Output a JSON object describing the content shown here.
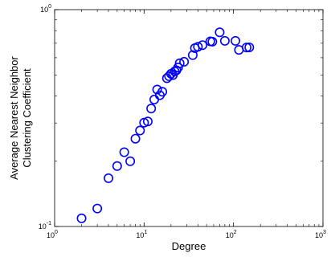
{
  "chart_data": {
    "type": "scatter",
    "title": "",
    "xlabel": "Degree",
    "ylabel_lines": [
      "Average Nearest Neighbor",
      "Clustering Coefficient"
    ],
    "xscale": "log",
    "yscale": "log",
    "xlim": [
      1,
      1000
    ],
    "ylim": [
      0.1,
      1
    ],
    "grid": false,
    "marker": "open-circle",
    "marker_color": "#0000ff",
    "x_ticks": [
      {
        "base": "10",
        "exp": "0",
        "value": 1
      },
      {
        "base": "10",
        "exp": "1",
        "value": 10
      },
      {
        "base": "10",
        "exp": "2",
        "value": 100
      },
      {
        "base": "10",
        "exp": "3",
        "value": 1000
      }
    ],
    "y_ticks": [
      {
        "base": "10",
        "exp": "-1",
        "value": 0.1
      },
      {
        "base": "10",
        "exp": "0",
        "value": 1
      }
    ],
    "points": [
      {
        "x": 2,
        "y": 0.109
      },
      {
        "x": 3,
        "y": 0.121
      },
      {
        "x": 4,
        "y": 0.167
      },
      {
        "x": 5,
        "y": 0.19
      },
      {
        "x": 6,
        "y": 0.22
      },
      {
        "x": 7,
        "y": 0.2
      },
      {
        "x": 8,
        "y": 0.254
      },
      {
        "x": 9,
        "y": 0.277
      },
      {
        "x": 10,
        "y": 0.301
      },
      {
        "x": 11,
        "y": 0.305
      },
      {
        "x": 12,
        "y": 0.35
      },
      {
        "x": 13,
        "y": 0.385
      },
      {
        "x": 14,
        "y": 0.428
      },
      {
        "x": 15,
        "y": 0.403
      },
      {
        "x": 16,
        "y": 0.418
      },
      {
        "x": 18,
        "y": 0.483
      },
      {
        "x": 19,
        "y": 0.493
      },
      {
        "x": 20,
        "y": 0.506
      },
      {
        "x": 21,
        "y": 0.499
      },
      {
        "x": 22,
        "y": 0.519
      },
      {
        "x": 23,
        "y": 0.525
      },
      {
        "x": 24,
        "y": 0.541
      },
      {
        "x": 25,
        "y": 0.566
      },
      {
        "x": 28,
        "y": 0.575
      },
      {
        "x": 35,
        "y": 0.617
      },
      {
        "x": 37,
        "y": 0.665
      },
      {
        "x": 40,
        "y": 0.674
      },
      {
        "x": 45,
        "y": 0.686
      },
      {
        "x": 55,
        "y": 0.714
      },
      {
        "x": 58,
        "y": 0.712
      },
      {
        "x": 70,
        "y": 0.786
      },
      {
        "x": 80,
        "y": 0.718
      },
      {
        "x": 105,
        "y": 0.718
      },
      {
        "x": 115,
        "y": 0.652
      },
      {
        "x": 140,
        "y": 0.669
      },
      {
        "x": 150,
        "y": 0.67
      }
    ]
  }
}
